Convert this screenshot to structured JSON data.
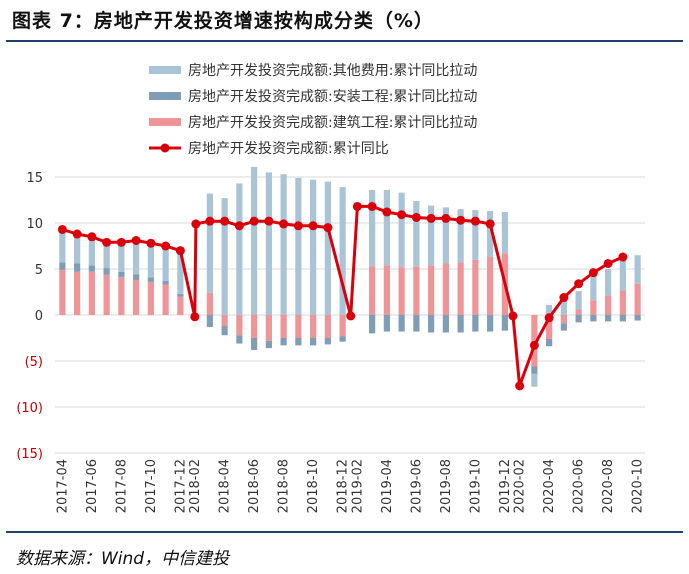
{
  "figure": {
    "title": "图表 7：房地产开发投资增速按构成分类（%）",
    "source": "数据来源：Wind，中信建投"
  },
  "colors": {
    "other": "#a9c3d7",
    "install": "#7f9db6",
    "construction": "#ef9497",
    "total": "#d9000b",
    "negative_tick": "#c00000",
    "rule": "#1f3f6e"
  },
  "chart_data": {
    "type": "bar",
    "stacked": true,
    "x": [
      "2017-04",
      "2017-05",
      "2017-06",
      "2017-07",
      "2017-08",
      "2017-09",
      "2017-10",
      "2017-11",
      "2017-12",
      "2018-02",
      "2018-03",
      "2018-04",
      "2018-05",
      "2018-06",
      "2018-07",
      "2018-08",
      "2018-09",
      "2018-10",
      "2018-11",
      "2018-12",
      "2019-02",
      "2019-03",
      "2019-04",
      "2019-05",
      "2019-06",
      "2019-07",
      "2019-08",
      "2019-09",
      "2019-10",
      "2019-11",
      "2019-12",
      "2020-02",
      "2020-03",
      "2020-04",
      "2020-05",
      "2020-06",
      "2020-07",
      "2020-08",
      "2020-09",
      "2020-10"
    ],
    "x_tick_labels": [
      "2017-04",
      "2017-06",
      "2017-08",
      "2017-10",
      "2017-12",
      "2018-02",
      "2018-04",
      "2018-06",
      "2018-08",
      "2018-10",
      "2018-12",
      "2019-02",
      "2019-04",
      "2019-06",
      "2019-08",
      "2019-10",
      "2019-12",
      "2020-02",
      "2020-04",
      "2020-06",
      "2020-08",
      "2020-10"
    ],
    "ylim": [
      -15,
      15
    ],
    "y_ticks": [
      15,
      10,
      5,
      0,
      -5,
      -10,
      -15
    ],
    "y_tick_labels": [
      "15",
      "10",
      "5",
      "0",
      "(5)",
      "(10)",
      "(15)"
    ],
    "legend_position": "top",
    "grid": true,
    "series": [
      {
        "name": "房地产开发投资完成额:其他费用:累计同比拉动",
        "type": "bar",
        "color_key": "other",
        "values": [
          3.3,
          3.1,
          2.8,
          2.8,
          2.9,
          3.4,
          3.4,
          3.6,
          4.6,
          null,
          10.8,
          12.7,
          14.3,
          16.1,
          15.5,
          15.3,
          14.9,
          14.7,
          14.5,
          13.9,
          null,
          8.3,
          8.2,
          8.1,
          7.1,
          6.5,
          6.1,
          5.8,
          5.4,
          5.0,
          4.5,
          null,
          -1.4,
          1.1,
          1.7,
          2.0,
          2.6,
          2.9,
          3.2,
          3.1
        ]
      },
      {
        "name": "房地产开发投资完成额:安装工程:累计同比拉动",
        "type": "bar",
        "color_key": "install",
        "values": [
          0.8,
          0.9,
          0.7,
          0.7,
          0.6,
          0.6,
          0.5,
          0.4,
          0.3,
          null,
          -1.3,
          -1.0,
          -0.9,
          -1.3,
          -0.8,
          -0.8,
          -0.8,
          -0.8,
          -0.7,
          -0.6,
          null,
          -2.0,
          -1.8,
          -1.8,
          -1.8,
          -1.9,
          -1.9,
          -1.9,
          -1.8,
          -1.8,
          -1.7,
          null,
          -0.8,
          -0.8,
          -0.8,
          -0.8,
          -0.7,
          -0.7,
          -0.7,
          -0.6
        ]
      },
      {
        "name": "房地产开发投资完成额:建筑工程:累计同比拉动",
        "type": "bar",
        "color_key": "construction",
        "values": [
          4.9,
          4.7,
          4.7,
          4.4,
          4.1,
          3.8,
          3.6,
          3.3,
          2.0,
          null,
          2.4,
          -1.2,
          -2.2,
          -2.5,
          -2.8,
          -2.5,
          -2.5,
          -2.5,
          -2.5,
          -2.3,
          null,
          5.3,
          5.4,
          5.2,
          5.3,
          5.4,
          5.6,
          5.7,
          6.0,
          6.3,
          6.7,
          null,
          -5.6,
          -2.6,
          -0.9,
          0.6,
          1.6,
          2.1,
          2.7,
          3.4
        ]
      },
      {
        "name": "房地产开发投资完成额:累计同比",
        "type": "line",
        "color_key": "total",
        "values": [
          9.3,
          8.8,
          8.5,
          7.9,
          7.9,
          8.1,
          7.8,
          7.5,
          7.0,
          -0.2,
          9.9,
          10.2,
          10.2,
          9.7,
          10.2,
          10.2,
          9.9,
          9.7,
          9.7,
          9.5,
          -0.1,
          11.8,
          11.8,
          11.2,
          10.9,
          10.6,
          10.5,
          10.5,
          10.3,
          10.2,
          9.9,
          -0.1,
          -7.7,
          -3.3,
          -0.3,
          1.9,
          3.4,
          4.6,
          5.6,
          6.3
        ]
      }
    ],
    "line_x_positions": [
      0,
      1,
      2,
      3,
      4,
      5,
      6,
      7,
      8,
      8.98,
      9.05,
      10,
      11,
      12,
      13,
      14,
      15,
      16,
      17,
      18,
      19.55,
      20,
      21,
      22,
      23,
      24,
      25,
      26,
      27,
      28,
      29,
      30.55,
      31,
      32,
      33,
      34,
      35,
      36,
      37,
      38
    ]
  }
}
